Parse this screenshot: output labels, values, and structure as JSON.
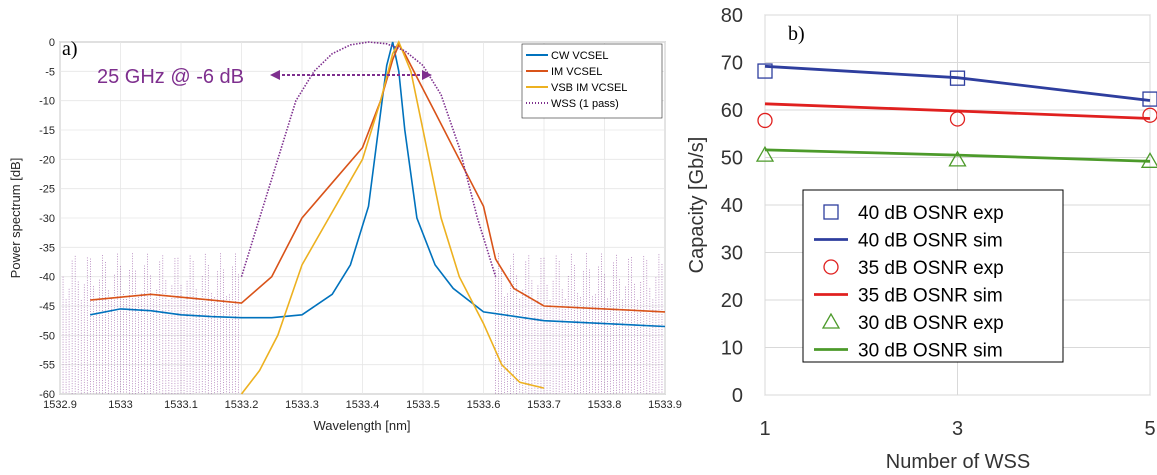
{
  "colors": {
    "cw": "#0072BD",
    "im": "#D95319",
    "vsb": "#EDB120",
    "wss": "#7E2F8E",
    "exp40": "#2E3E9E",
    "exp35": "#E0201F",
    "exp30": "#4C9A2A"
  },
  "panel_a": {
    "panel_label": "a)",
    "annotation": "25 GHz @ -6 dB",
    "legend": [
      "CW VCSEL",
      "IM VCSEL",
      "VSB IM VCSEL",
      "WSS (1 pass)"
    ]
  },
  "panel_b": {
    "panel_label": "b)",
    "legend": [
      "40 dB OSNR  exp",
      "40 dB OSNR  sim",
      "35 dB OSNR  exp",
      "35 dB OSNR  sim",
      "30 dB OSNR  exp",
      "30 dB OSNR  sim"
    ]
  },
  "chart_data": [
    {
      "type": "line",
      "xlabel": "Wavelength [nm]",
      "ylabel": "Power spectrum [dB]",
      "xlim": [
        1532.9,
        1533.9
      ],
      "ylim": [
        -60,
        0
      ],
      "xticks": [
        "1532.9",
        "1533",
        "1533.1",
        "1533.2",
        "1533.3",
        "1533.4",
        "1533.5",
        "1533.6",
        "1533.7",
        "1533.8",
        "1533.9"
      ],
      "yticks": [
        "0",
        "-5",
        "-10",
        "-15",
        "-20",
        "-25",
        "-30",
        "-35",
        "-40",
        "-45",
        "-50",
        "-55",
        "-60"
      ],
      "grid": true,
      "legend_position": "top-right",
      "series": [
        {
          "name": "CW VCSEL",
          "x": [
            1532.95,
            1533.0,
            1533.05,
            1533.1,
            1533.15,
            1533.2,
            1533.25,
            1533.3,
            1533.35,
            1533.38,
            1533.41,
            1533.43,
            1533.44,
            1533.45,
            1533.46,
            1533.47,
            1533.49,
            1533.52,
            1533.55,
            1533.6,
            1533.7,
            1533.8,
            1533.9
          ],
          "y": [
            -46.5,
            -45.5,
            -45.8,
            -46.5,
            -46.8,
            -47,
            -47,
            -46.5,
            -43,
            -38,
            -28,
            -12,
            -4,
            0,
            -5,
            -15,
            -30,
            -38,
            -42,
            -46,
            -47.5,
            -48,
            -48.5
          ]
        },
        {
          "name": "IM VCSEL",
          "x": [
            1532.95,
            1533.0,
            1533.05,
            1533.1,
            1533.15,
            1533.2,
            1533.25,
            1533.3,
            1533.35,
            1533.4,
            1533.43,
            1533.45,
            1533.46,
            1533.47,
            1533.49,
            1533.52,
            1533.55,
            1533.6,
            1533.62,
            1533.65,
            1533.7,
            1533.8,
            1533.9
          ],
          "y": [
            -44,
            -43.5,
            -43,
            -43.5,
            -44,
            -44.5,
            -40,
            -30,
            -24,
            -18,
            -10,
            -3,
            -0.5,
            -2,
            -6,
            -12,
            -18,
            -28,
            -37,
            -42,
            -45,
            -45.5,
            -46
          ]
        },
        {
          "name": "VSB IM VCSEL",
          "x": [
            1533.2,
            1533.23,
            1533.26,
            1533.3,
            1533.35,
            1533.4,
            1533.43,
            1533.45,
            1533.46,
            1533.48,
            1533.5,
            1533.53,
            1533.56,
            1533.6,
            1533.63,
            1533.66,
            1533.7
          ],
          "y": [
            -60,
            -56,
            -50,
            -38,
            -29,
            -20,
            -10,
            -2,
            0,
            -5,
            -15,
            -30,
            -40,
            -48,
            -55,
            -58,
            -59
          ]
        },
        {
          "name": "WSS (1 pass)",
          "x": [
            1533.2,
            1533.23,
            1533.26,
            1533.29,
            1533.32,
            1533.35,
            1533.38,
            1533.41,
            1533.44,
            1533.47,
            1533.5,
            1533.53,
            1533.56,
            1533.59,
            1533.62
          ],
          "y": [
            -40,
            -30,
            -20,
            -10,
            -5,
            -2,
            -0.5,
            0,
            -0.3,
            -1.5,
            -4,
            -9,
            -18,
            -30,
            -40
          ]
        }
      ]
    },
    {
      "type": "line",
      "xlabel": "Number of WSS",
      "ylabel": "Capacity [Gb/s]",
      "xlim": [
        1,
        5
      ],
      "ylim": [
        0,
        80
      ],
      "xticks": [
        "1",
        "3",
        "5"
      ],
      "yticks": [
        "0",
        "10",
        "20",
        "30",
        "40",
        "50",
        "60",
        "70",
        "80"
      ],
      "grid": true,
      "legend_position": "bottom-center",
      "series": [
        {
          "name": "40 dB OSNR  exp",
          "x": [
            1,
            3,
            5
          ],
          "y": [
            68.2,
            66.7,
            62.3
          ]
        },
        {
          "name": "40 dB OSNR  sim",
          "x": [
            1,
            3,
            5
          ],
          "y": [
            69.2,
            66.8,
            62.0
          ]
        },
        {
          "name": "35 dB OSNR  exp",
          "x": [
            1,
            3,
            5
          ],
          "y": [
            57.8,
            58.1,
            58.9
          ]
        },
        {
          "name": "35 dB OSNR  sim",
          "x": [
            1,
            3,
            5
          ],
          "y": [
            61.3,
            59.8,
            58.2
          ]
        },
        {
          "name": "30 dB OSNR  exp",
          "x": [
            1,
            3,
            5
          ],
          "y": [
            50.5,
            49.5,
            49.2
          ]
        },
        {
          "name": "30 dB OSNR  sim",
          "x": [
            1,
            3,
            5
          ],
          "y": [
            51.6,
            50.5,
            49.2
          ]
        }
      ]
    }
  ]
}
